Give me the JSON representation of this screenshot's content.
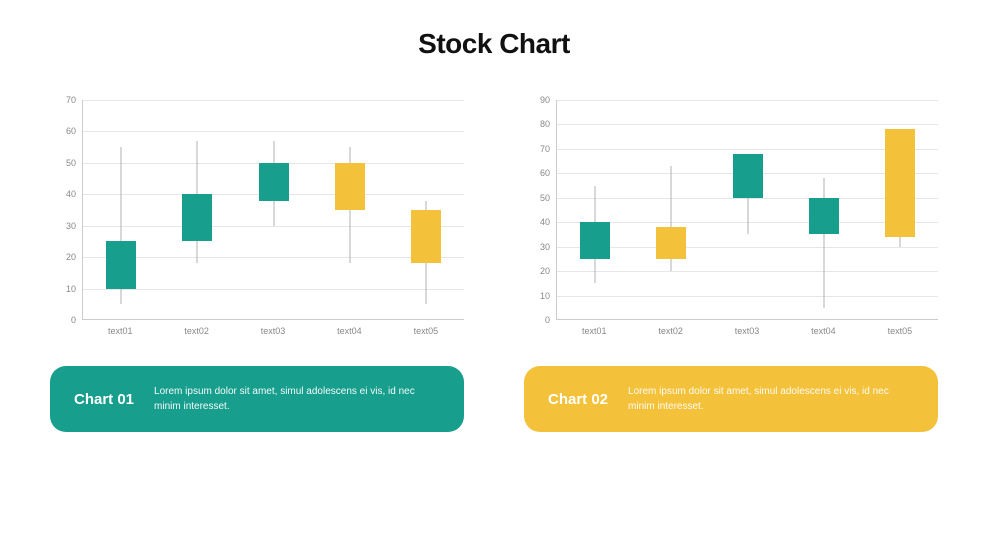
{
  "title": "Stock Chart",
  "colors": {
    "teal": "#179e8d",
    "yellow": "#f3c13a",
    "grid": "#e6e6e6",
    "axis": "#cccccc",
    "tick_text": "#888888",
    "bg": "#ffffff",
    "title_text": "#111111"
  },
  "typography": {
    "title_size": 28,
    "title_weight": 800,
    "tick_size": 9,
    "caption_title_size": 15,
    "caption_desc_size": 10
  },
  "chart1": {
    "type": "candlestick",
    "ylim": [
      0,
      70
    ],
    "ytick_step": 10,
    "yticks": [
      0,
      10,
      20,
      30,
      40,
      50,
      60,
      70
    ],
    "categories": [
      "text01",
      "text02",
      "text03",
      "text04",
      "text05"
    ],
    "data": [
      {
        "high": 55,
        "low": 5,
        "box_top": 25,
        "box_bottom": 10,
        "color": "#179e8d"
      },
      {
        "high": 57,
        "low": 18,
        "box_top": 40,
        "box_bottom": 25,
        "color": "#179e8d"
      },
      {
        "high": 57,
        "low": 30,
        "box_top": 50,
        "box_bottom": 38,
        "color": "#179e8d"
      },
      {
        "high": 55,
        "low": 18,
        "box_top": 50,
        "box_bottom": 35,
        "color": "#f3c13a"
      },
      {
        "high": 38,
        "low": 5,
        "box_top": 35,
        "box_bottom": 18,
        "color": "#f3c13a"
      }
    ]
  },
  "chart2": {
    "type": "candlestick",
    "ylim": [
      0,
      90
    ],
    "ytick_step": 10,
    "yticks": [
      0,
      10,
      20,
      30,
      40,
      50,
      60,
      70,
      80,
      90
    ],
    "categories": [
      "text01",
      "text02",
      "text03",
      "text04",
      "text05"
    ],
    "data": [
      {
        "high": 55,
        "low": 15,
        "box_top": 40,
        "box_bottom": 25,
        "color": "#179e8d"
      },
      {
        "high": 63,
        "low": 20,
        "box_top": 38,
        "box_bottom": 25,
        "color": "#f3c13a"
      },
      {
        "high": 68,
        "low": 35,
        "box_top": 68,
        "box_bottom": 50,
        "color": "#179e8d"
      },
      {
        "high": 58,
        "low": 5,
        "box_top": 50,
        "box_bottom": 35,
        "color": "#179e8d"
      },
      {
        "high": 78,
        "low": 30,
        "box_top": 78,
        "box_bottom": 34,
        "color": "#f3c13a"
      }
    ]
  },
  "captions": [
    {
      "title": "Chart 01",
      "desc": "Lorem ipsum dolor sit amet, simul adolescens ei vis, id nec minim interesset.",
      "bg": "#179e8d"
    },
    {
      "title": "Chart 02",
      "desc": "Lorem ipsum dolor sit amet, simul adolescens ei vis, id nec minim interesset.",
      "bg": "#f3c13a"
    }
  ]
}
